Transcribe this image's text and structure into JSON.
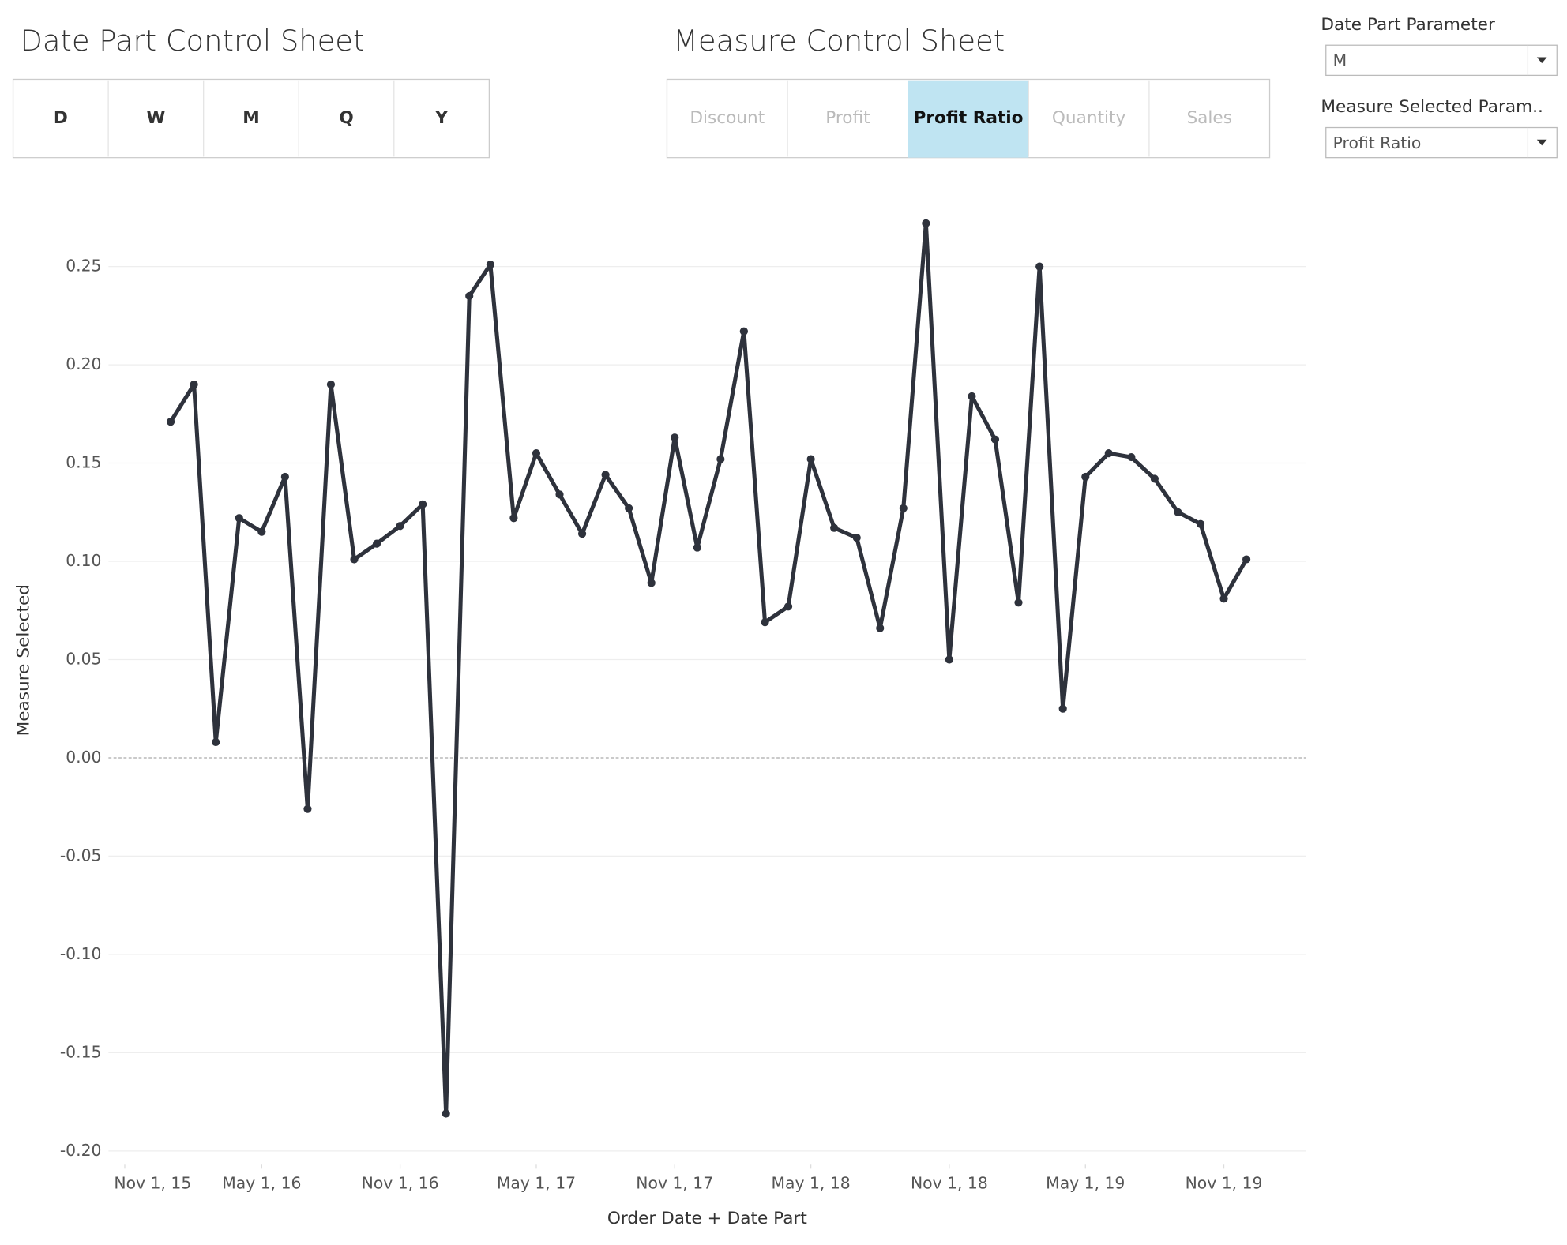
{
  "date_part_sheet": {
    "title": "Date Part Control Sheet",
    "buttons": [
      "D",
      "W",
      "M",
      "Q",
      "Y"
    ]
  },
  "measure_sheet": {
    "title": "Measure Control Sheet",
    "buttons": [
      "Discount",
      "Profit",
      "Profit Ratio",
      "Quantity",
      "Sales"
    ],
    "selected_index": 2
  },
  "parameters": [
    {
      "label": "Date Part Parameter",
      "value": "M"
    },
    {
      "label": "Measure Selected Param..",
      "value": "Profit Ratio"
    }
  ],
  "chart_data": {
    "type": "line",
    "x_label": "Order Date + Date Part",
    "y_label": "Measure Selected",
    "x": [
      "2016-01-01",
      "2016-02-01",
      "2016-03-01",
      "2016-04-01",
      "2016-05-01",
      "2016-06-01",
      "2016-07-01",
      "2016-08-01",
      "2016-09-01",
      "2016-10-01",
      "2016-11-01",
      "2016-12-01",
      "2017-01-01",
      "2017-02-01",
      "2017-03-01",
      "2017-04-01",
      "2017-05-01",
      "2017-06-01",
      "2017-07-01",
      "2017-08-01",
      "2017-09-01",
      "2017-10-01",
      "2017-11-01",
      "2017-12-01",
      "2018-01-01",
      "2018-02-01",
      "2018-03-01",
      "2018-04-01",
      "2018-05-01",
      "2018-06-01",
      "2018-07-01",
      "2018-08-01",
      "2018-09-01",
      "2018-10-01",
      "2018-11-01",
      "2018-12-01",
      "2019-01-01",
      "2019-02-01",
      "2019-03-01",
      "2019-04-01",
      "2019-05-01",
      "2019-06-01",
      "2019-07-01",
      "2019-08-01",
      "2019-09-01",
      "2019-10-01",
      "2019-11-01",
      "2019-12-01"
    ],
    "series": [
      {
        "name": "Measure Selected",
        "color": "#2e323c",
        "values": [
          0.171,
          0.19,
          0.008,
          0.122,
          0.115,
          0.143,
          -0.026,
          0.19,
          0.101,
          0.109,
          0.118,
          0.129,
          -0.181,
          0.235,
          0.251,
          0.122,
          0.155,
          0.134,
          0.114,
          0.144,
          0.127,
          0.089,
          0.163,
          0.107,
          0.152,
          0.217,
          0.069,
          0.077,
          0.152,
          0.117,
          0.112,
          0.066,
          0.127,
          0.272,
          0.05,
          0.184,
          0.162,
          0.079,
          0.25,
          0.025,
          0.143,
          0.155,
          0.153,
          0.142,
          0.125,
          0.119,
          0.081,
          0.101
        ]
      }
    ],
    "xlim": [
      "2015-10-01",
      "2020-03-01"
    ],
    "xticks": [
      {
        "value": "2015-11-01",
        "label": "Nov 1, 15"
      },
      {
        "value": "2016-05-01",
        "label": "May 1, 16"
      },
      {
        "value": "2016-11-01",
        "label": "Nov 1, 16"
      },
      {
        "value": "2017-05-01",
        "label": "May 1, 17"
      },
      {
        "value": "2017-11-01",
        "label": "Nov 1, 17"
      },
      {
        "value": "2018-05-01",
        "label": "May 1, 18"
      },
      {
        "value": "2018-11-01",
        "label": "Nov 1, 18"
      },
      {
        "value": "2019-05-01",
        "label": "May 1, 19"
      },
      {
        "value": "2019-11-01",
        "label": "Nov 1, 19"
      }
    ],
    "ylim": [
      -0.207,
      0.286
    ],
    "yticks": [
      {
        "value": -0.2,
        "label": "-0.20"
      },
      -0.15,
      {
        "value": -0.1,
        "label": "-0.10"
      },
      -0.05,
      {
        "value": 0,
        "label": "0.00"
      },
      0.05,
      {
        "value": 0.1,
        "label": "0.10"
      },
      0.15,
      {
        "value": 0.2,
        "label": "0.20"
      },
      0.25
    ],
    "grid": true
  }
}
